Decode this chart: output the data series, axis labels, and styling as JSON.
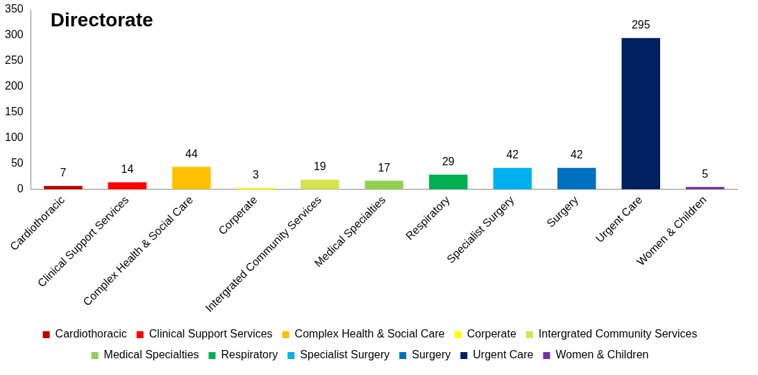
{
  "chart_data": {
    "type": "bar",
    "title": "Directorate",
    "categories": [
      "Cardiothoracic",
      "Clinical Support Services",
      "Complex Health & Social Care",
      "Corperate",
      "Intergrated Community Services",
      "Medical Specialties",
      "Respiratory",
      "Specialist Surgery",
      "Surgery",
      "Urgent Care",
      "Women & Children"
    ],
    "series": [
      {
        "name": "Cardiothoracic",
        "color": "#c00000",
        "values": [
          7,
          null,
          null,
          null,
          null,
          null,
          null,
          null,
          null,
          null,
          null
        ]
      },
      {
        "name": "Clinical Support Services",
        "color": "#ff0000",
        "values": [
          null,
          14,
          null,
          null,
          null,
          null,
          null,
          null,
          null,
          null,
          null
        ]
      },
      {
        "name": "Complex Health & Social Care",
        "color": "#ffc000",
        "values": [
          null,
          null,
          44,
          null,
          null,
          null,
          null,
          null,
          null,
          null,
          null
        ]
      },
      {
        "name": "Corperate",
        "color": "#ffff00",
        "values": [
          null,
          null,
          null,
          3,
          null,
          null,
          null,
          null,
          null,
          null,
          null
        ]
      },
      {
        "name": "Intergrated Community Services",
        "color": "#d7e34f",
        "values": [
          null,
          null,
          null,
          null,
          19,
          null,
          null,
          null,
          null,
          null,
          null
        ]
      },
      {
        "name": "Medical Specialties",
        "color": "#92d050",
        "values": [
          null,
          null,
          null,
          null,
          null,
          17,
          null,
          null,
          null,
          null,
          null
        ]
      },
      {
        "name": "Respiratory",
        "color": "#00b050",
        "values": [
          null,
          null,
          null,
          null,
          null,
          null,
          29,
          null,
          null,
          null,
          null
        ]
      },
      {
        "name": "Specialist Surgery",
        "color": "#00b0f0",
        "values": [
          null,
          null,
          null,
          null,
          null,
          null,
          null,
          42,
          null,
          null,
          null
        ]
      },
      {
        "name": "Surgery",
        "color": "#0070c0",
        "values": [
          null,
          null,
          null,
          null,
          null,
          null,
          null,
          null,
          42,
          null,
          null
        ]
      },
      {
        "name": "Urgent Care",
        "color": "#002060",
        "values": [
          null,
          null,
          null,
          null,
          null,
          null,
          null,
          null,
          null,
          295,
          null
        ]
      },
      {
        "name": "Women & Children",
        "color": "#7030a0",
        "values": [
          null,
          null,
          null,
          null,
          null,
          null,
          null,
          null,
          null,
          null,
          5
        ]
      }
    ],
    "ylim": [
      0,
      350
    ],
    "yticks": [
      0,
      50,
      100,
      150,
      200,
      250,
      300,
      350
    ],
    "grid": false,
    "legend": "bottom",
    "data_labels": true
  }
}
